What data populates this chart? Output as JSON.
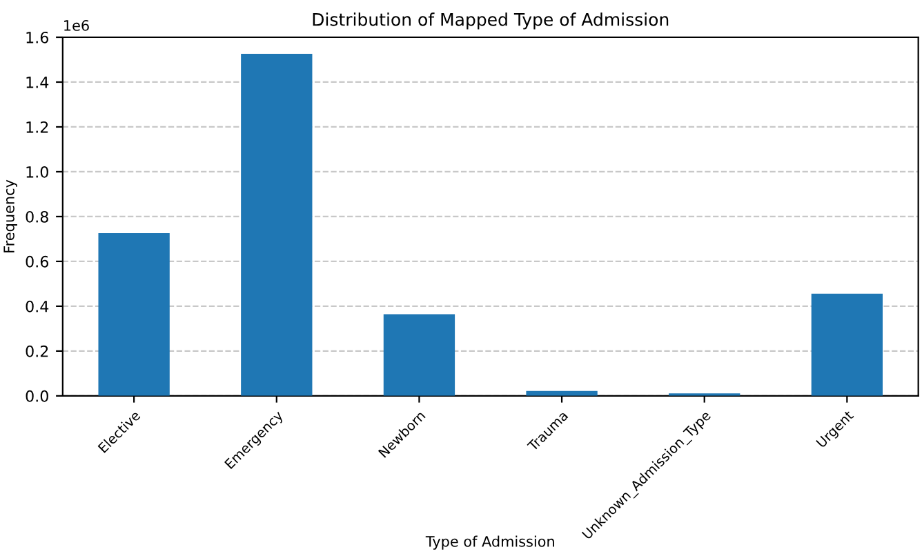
{
  "chart_data": {
    "type": "bar",
    "title": "Distribution of Mapped Type of Admission",
    "xlabel": "Type of Admission",
    "ylabel": "Frequency",
    "categories": [
      "Elective",
      "Emergency",
      "Newborn",
      "Trauma",
      "Unknown_Admission_Type",
      "Urgent"
    ],
    "values": [
      0.726,
      1.526,
      0.364,
      0.022,
      0.011,
      0.456
    ],
    "color": "#1f77b4",
    "ylim": [
      0,
      1.6
    ],
    "yticks": [
      {
        "value": 0,
        "label": "0.0"
      },
      0.2,
      0.4,
      0.6,
      0.8,
      {
        "value": 1,
        "label": "1.0"
      },
      1.2,
      1.4,
      1.6
    ],
    "annotations": [
      "1e6"
    ],
    "grid": "y"
  }
}
